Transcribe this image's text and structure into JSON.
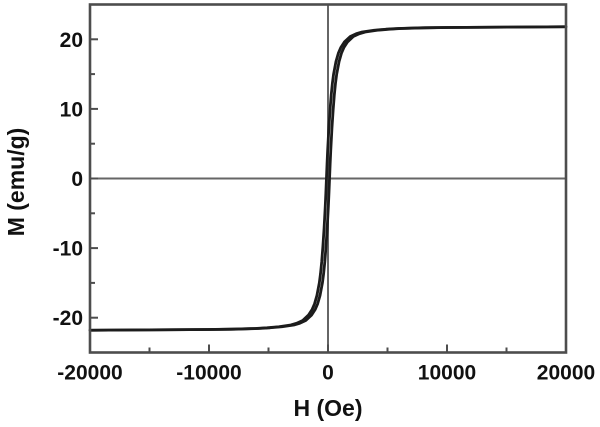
{
  "figure": {
    "background": "#ffffff"
  },
  "chart_data": {
    "type": "line",
    "title": "",
    "xlabel": "H (Oe)",
    "ylabel": "M (emu/g)",
    "xlim": [
      -20000,
      20000
    ],
    "ylim": [
      -25,
      25
    ],
    "x_ticks": [
      -20000,
      -10000,
      0,
      10000,
      20000
    ],
    "x_tick_labels": [
      "-20000",
      "-10000",
      "0",
      "10000",
      "20000"
    ],
    "x_minor_ticks": [
      -15000,
      -5000,
      5000,
      15000
    ],
    "y_ticks": [
      -20,
      -10,
      0,
      10,
      20
    ],
    "y_tick_labels": [
      "-20",
      "-10",
      "0",
      "10",
      "20"
    ],
    "y_minor_ticks": [
      -15,
      -5,
      5,
      15
    ],
    "grid": "zero-axes-only",
    "legend": "none",
    "frame_color": "#4d4d4d",
    "zero_line_color": "#666666",
    "curve_color": "#1c1c1c",
    "text_color": "#111111",
    "saturation_magnetization_emu_g": 21.8,
    "coercivity_Oe": 130,
    "series": [
      {
        "name": "magnetization-loop",
        "points": [
          [
            -20000,
            -21.8
          ],
          [
            -15000,
            -21.75
          ],
          [
            -10000,
            -21.7
          ],
          [
            -8000,
            -21.65
          ],
          [
            -6000,
            -21.55
          ],
          [
            -5000,
            -21.45
          ],
          [
            -4000,
            -21.3
          ],
          [
            -3000,
            -21.05
          ],
          [
            -2500,
            -20.8
          ],
          [
            -2000,
            -20.4
          ],
          [
            -1500,
            -19.6
          ],
          [
            -1200,
            -18.8
          ],
          [
            -1000,
            -18.0
          ],
          [
            -800,
            -16.8
          ],
          [
            -600,
            -15.0
          ],
          [
            -500,
            -13.7
          ],
          [
            -400,
            -12.0
          ],
          [
            -300,
            -9.8
          ],
          [
            -200,
            -7.2
          ],
          [
            -150,
            -5.6
          ],
          [
            -100,
            -4.0
          ],
          [
            -50,
            -2.1
          ],
          [
            0,
            0
          ],
          [
            50,
            2.1
          ],
          [
            100,
            4.0
          ],
          [
            150,
            5.6
          ],
          [
            200,
            7.2
          ],
          [
            300,
            9.8
          ],
          [
            400,
            12.0
          ],
          [
            500,
            13.7
          ],
          [
            600,
            15.0
          ],
          [
            800,
            16.8
          ],
          [
            1000,
            18.0
          ],
          [
            1200,
            18.8
          ],
          [
            1500,
            19.6
          ],
          [
            2000,
            20.4
          ],
          [
            2500,
            20.8
          ],
          [
            3000,
            21.05
          ],
          [
            4000,
            21.3
          ],
          [
            5000,
            21.45
          ],
          [
            6000,
            21.55
          ],
          [
            8000,
            21.65
          ],
          [
            10000,
            21.7
          ],
          [
            15000,
            21.75
          ],
          [
            20000,
            21.8
          ]
        ]
      }
    ]
  }
}
